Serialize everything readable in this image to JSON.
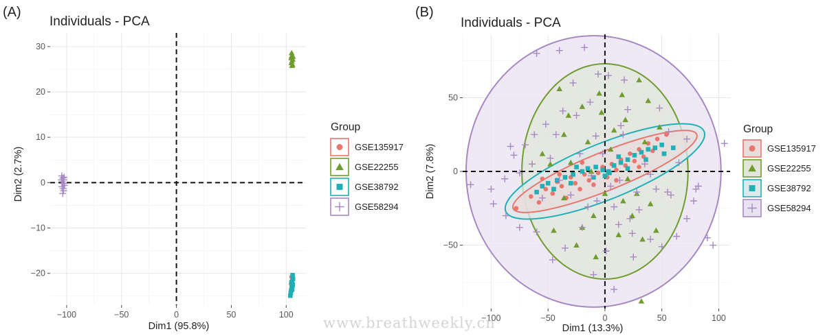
{
  "watermark": "www.breathweekly.cn",
  "chart_data": [
    {
      "panel_label": "(A)",
      "type": "scatter",
      "title": "Individuals - PCA",
      "xlabel": "Dim1 (95.8%)",
      "ylabel": "Dim2 (2.7%)",
      "xlim": [
        -115,
        118
      ],
      "ylim": [
        -27,
        33
      ],
      "x_ticks": [
        -100,
        -50,
        0,
        50,
        100
      ],
      "y_ticks": [
        -20,
        -10,
        0,
        10,
        20,
        30
      ],
      "x_tick_labels": [
        "−100",
        "−50",
        "0",
        "50",
        "100"
      ],
      "y_tick_labels": [
        "−20",
        "−10",
        "0",
        "10",
        "20",
        "30"
      ],
      "legend_title": "Group",
      "legend_position": "right",
      "series": [
        {
          "name": "GSE135917",
          "shape": "circle",
          "color": "#E8766E",
          "points": [
            [
              104.8,
              -20.8
            ],
            [
              105.2,
              -21.6
            ],
            [
              104.4,
              -22.3
            ],
            [
              105.6,
              -22.9
            ],
            [
              104.9,
              -23.4
            ]
          ]
        },
        {
          "name": "GSE22255",
          "shape": "triangle",
          "color": "#6F9C2E",
          "points": [
            [
              105.0,
              28.6
            ],
            [
              105.6,
              28.0
            ],
            [
              104.6,
              27.5
            ],
            [
              106.0,
              27.2
            ],
            [
              105.2,
              26.8
            ],
            [
              104.8,
              26.4
            ],
            [
              105.8,
              26.0
            ],
            [
              105.3,
              25.8
            ],
            [
              104.9,
              27.9
            ],
            [
              106.2,
              27.8
            ]
          ]
        },
        {
          "name": "GSE38792",
          "shape": "square",
          "color": "#20AFB5",
          "points": [
            [
              105.8,
              -20.4
            ],
            [
              106.2,
              -21.2
            ],
            [
              105.4,
              -21.9
            ],
            [
              106.0,
              -22.5
            ],
            [
              105.0,
              -23.1
            ],
            [
              104.6,
              -23.8
            ],
            [
              104.2,
              -24.3
            ],
            [
              103.8,
              -24.9
            ],
            [
              104.8,
              -22.0
            ],
            [
              105.5,
              -23.5
            ]
          ]
        },
        {
          "name": "GSE58294",
          "shape": "cross",
          "color": "#A688C2",
          "points": [
            [
              -104.5,
              1.5
            ],
            [
              -103.5,
              1.0
            ],
            [
              -102.5,
              0.6
            ],
            [
              -104.0,
              0.2
            ],
            [
              -103.0,
              -0.2
            ],
            [
              -102.0,
              -0.6
            ],
            [
              -104.2,
              -0.9
            ],
            [
              -103.2,
              -1.3
            ],
            [
              -102.8,
              -1.8
            ],
            [
              -103.6,
              -2.4
            ],
            [
              -102.4,
              1.2
            ],
            [
              -104.8,
              0.6
            ]
          ]
        }
      ]
    },
    {
      "panel_label": "(B)",
      "type": "scatter",
      "title": "Individuals - PCA",
      "xlabel": "Dim1 (13.3%)",
      "ylabel": "Dim2 (7.8%)",
      "xlim": [
        -125,
        110
      ],
      "ylim": [
        -93,
        93
      ],
      "x_ticks": [
        -100,
        -50,
        0,
        50,
        100
      ],
      "y_ticks": [
        -50,
        0,
        50
      ],
      "x_tick_labels": [
        "−100",
        "−50",
        "0",
        "50",
        "100"
      ],
      "y_tick_labels": [
        "−50",
        "0",
        "50"
      ],
      "legend_title": "Group",
      "legend_position": "right",
      "ellipses": [
        {
          "group": "GSE58294",
          "cx": -10,
          "cy": 0,
          "rx": 112,
          "ry": 92,
          "angle": 0,
          "color": "#A688C2",
          "fill": "#E9E2F1"
        },
        {
          "group": "GSE22255",
          "cx": 0,
          "cy": 0,
          "rx": 73,
          "ry": 73,
          "angle": 0,
          "color": "#6F9C2E",
          "fill": "#E2E5D9"
        },
        {
          "group": "GSE38792",
          "cx": 0,
          "cy": 0,
          "rx": 94,
          "ry": 19,
          "angle": 22,
          "color": "#20AFB5",
          "fill": "#DCE8EA"
        },
        {
          "group": "GSE135917",
          "cx": 0,
          "cy": 0,
          "rx": 87,
          "ry": 13,
          "angle": 22,
          "color": "#E8766E",
          "fill": "#EADCDA"
        }
      ],
      "series": [
        {
          "name": "GSE135917",
          "shape": "circle",
          "color": "#E8766E",
          "points": [
            [
              -78,
              -25
            ],
            [
              -65,
              -17
            ],
            [
              -58,
              -21
            ],
            [
              -52,
              -12
            ],
            [
              -46,
              -15
            ],
            [
              -42,
              -7
            ],
            [
              -38,
              -10
            ],
            [
              -34,
              -18
            ],
            [
              -30,
              -4
            ],
            [
              -26,
              -8
            ],
            [
              -22,
              -12
            ],
            [
              -18,
              -2
            ],
            [
              -14,
              -6
            ],
            [
              -10,
              -9
            ],
            [
              -6,
              -1
            ],
            [
              -2,
              3
            ],
            [
              2,
              -4
            ],
            [
              6,
              5
            ],
            [
              10,
              1
            ],
            [
              14,
              8
            ],
            [
              18,
              4
            ],
            [
              22,
              12
            ],
            [
              26,
              7
            ],
            [
              30,
              15
            ],
            [
              34,
              10
            ],
            [
              38,
              19
            ],
            [
              42,
              14
            ],
            [
              46,
              22
            ],
            [
              50,
              18
            ],
            [
              54,
              25
            ],
            [
              -40,
              -2
            ],
            [
              -20,
              6
            ],
            [
              10,
              -6
            ],
            [
              30,
              3
            ],
            [
              -55,
              -5
            ]
          ]
        },
        {
          "name": "GSE22255",
          "shape": "triangle",
          "color": "#6F9C2E",
          "points": [
            [
              -40,
              56
            ],
            [
              -32,
              38
            ],
            [
              -20,
              44
            ],
            [
              -5,
              53
            ],
            [
              15,
              52
            ],
            [
              30,
              62
            ],
            [
              35,
              20
            ],
            [
              48,
              30
            ],
            [
              28,
              -15
            ],
            [
              -45,
              -40
            ],
            [
              -36,
              -18
            ],
            [
              -25,
              -50
            ],
            [
              -10,
              -30
            ],
            [
              12,
              -43
            ],
            [
              24,
              -30
            ],
            [
              40,
              -22
            ],
            [
              -15,
              20
            ],
            [
              5,
              15
            ],
            [
              -55,
              12
            ],
            [
              -48,
              5
            ],
            [
              20,
              -5
            ],
            [
              33,
              -46
            ],
            [
              -8,
              -58
            ],
            [
              16,
              -20
            ],
            [
              -30,
              6
            ],
            [
              45,
              -40
            ],
            [
              -20,
              -38
            ],
            [
              8,
              28
            ],
            [
              -12,
              0
            ],
            [
              0,
              -15
            ],
            [
              -3,
              40
            ],
            [
              38,
              48
            ],
            [
              -36,
              25
            ],
            [
              18,
              35
            ],
            [
              32,
              -88
            ]
          ]
        },
        {
          "name": "GSE38792",
          "shape": "square",
          "color": "#20AFB5",
          "points": [
            [
              -55,
              -10
            ],
            [
              -50,
              -8
            ],
            [
              -42,
              -6
            ],
            [
              -35,
              -4
            ],
            [
              -28,
              -2
            ],
            [
              -20,
              0
            ],
            [
              -15,
              2
            ],
            [
              -8,
              3
            ],
            [
              -2,
              1
            ],
            [
              3,
              0
            ],
            [
              8,
              4
            ],
            [
              14,
              6
            ],
            [
              20,
              8
            ],
            [
              26,
              11
            ],
            [
              32,
              13
            ],
            [
              38,
              15
            ],
            [
              44,
              16
            ],
            [
              50,
              18
            ],
            [
              -60,
              -14
            ],
            [
              -45,
              -12
            ],
            [
              -30,
              -8
            ],
            [
              -10,
              -4
            ],
            [
              4,
              -1
            ],
            [
              20,
              2
            ],
            [
              36,
              8
            ],
            [
              52,
              12
            ],
            [
              -25,
              3
            ],
            [
              12,
              10
            ],
            [
              60,
              16
            ],
            [
              0,
              -3
            ]
          ]
        },
        {
          "name": "GSE58294",
          "shape": "cross",
          "color": "#A688C2",
          "points": [
            [
              -60,
              80
            ],
            [
              -40,
              82
            ],
            [
              -18,
              84
            ],
            [
              3,
              65
            ],
            [
              17,
              62
            ],
            [
              -13,
              47
            ],
            [
              -8,
              24
            ],
            [
              16,
              25
            ],
            [
              20,
              42
            ],
            [
              48,
              43
            ],
            [
              56,
              27
            ],
            [
              72,
              22
            ],
            [
              65,
              6
            ],
            [
              82,
              -10
            ],
            [
              80,
              -12
            ],
            [
              78,
              -20
            ],
            [
              72,
              -32
            ],
            [
              63,
              -44
            ],
            [
              50,
              -51
            ],
            [
              40,
              -46
            ],
            [
              24,
              -42
            ],
            [
              12,
              -36
            ],
            [
              -20,
              -38
            ],
            [
              -35,
              -52
            ],
            [
              -46,
              -60
            ],
            [
              -60,
              -41
            ],
            [
              -75,
              -38
            ],
            [
              -87,
              -30
            ],
            [
              -98,
              -22
            ],
            [
              -118,
              -9
            ],
            [
              -100,
              -12
            ],
            [
              -88,
              -5
            ],
            [
              -75,
              -1
            ],
            [
              -64,
              5
            ],
            [
              -70,
              18
            ],
            [
              -62,
              25
            ],
            [
              -52,
              32
            ],
            [
              -43,
              25
            ],
            [
              -37,
              41
            ],
            [
              -25,
              38
            ],
            [
              -22,
              12
            ],
            [
              -12,
              -3
            ],
            [
              -7,
              -20
            ],
            [
              5,
              -10
            ],
            [
              13,
              -6
            ],
            [
              28,
              -14
            ],
            [
              30,
              -26
            ],
            [
              25,
              -58
            ],
            [
              1,
              -54
            ],
            [
              -10,
              -70
            ],
            [
              8,
              -80
            ],
            [
              -40,
              -6
            ],
            [
              -30,
              -16
            ],
            [
              -15,
              -24
            ],
            [
              45,
              -12
            ],
            [
              55,
              -14
            ],
            [
              35,
              5
            ],
            [
              95,
              -50
            ],
            [
              90,
              -45
            ],
            [
              105,
              19
            ],
            [
              -80,
              11
            ],
            [
              -83,
              17
            ],
            [
              14,
              31
            ],
            [
              -2,
              12
            ],
            [
              -48,
              9
            ],
            [
              40,
              -2
            ],
            [
              58,
              -16
            ],
            [
              -28,
              60
            ],
            [
              -6,
              66
            ],
            [
              8,
              -24
            ],
            [
              -55,
              -18
            ],
            [
              22,
              -32
            ]
          ]
        }
      ]
    }
  ]
}
